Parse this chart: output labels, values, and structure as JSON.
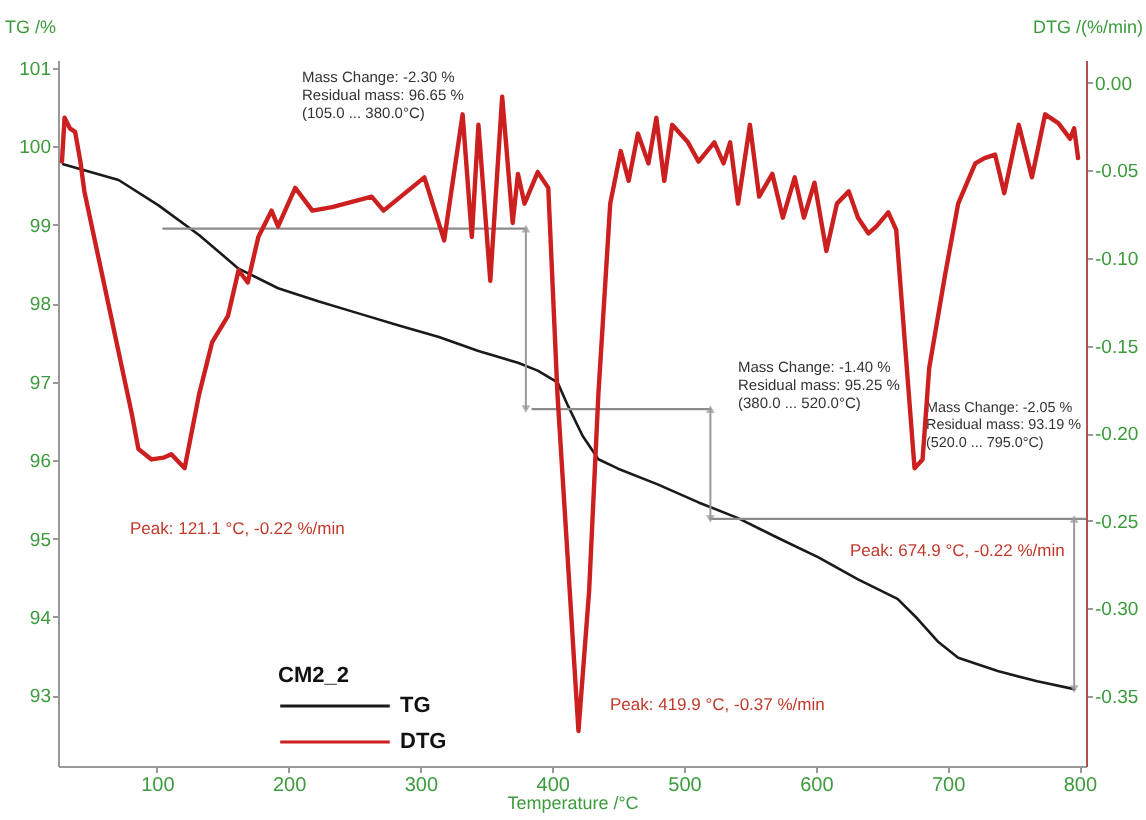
{
  "chart_data": {
    "type": "line",
    "xlabel": "Temperature /°C",
    "ylabel": "TG /%",
    "y2label": "DTG /(%/min)",
    "legend_title": "CM2_2",
    "legend": "bottom left",
    "grid": false,
    "line_style": "solid",
    "xlim": [
      25,
      805
    ],
    "xticks": [
      100,
      200,
      300,
      400,
      500,
      600,
      700,
      800
    ],
    "ylim": [
      92.1,
      101.1
    ],
    "yticks": [
      93,
      94,
      95,
      96,
      97,
      98,
      99,
      100,
      101
    ],
    "y2lim": [
      -0.39,
      0.013
    ],
    "y2ticks": [
      {
        "value": 0,
        "label": "0.00"
      },
      {
        "value": -0.05,
        "label": "-0.05"
      },
      {
        "value": -0.1,
        "label": "-0.10"
      },
      {
        "value": -0.15,
        "label": "-0.15"
      },
      {
        "value": -0.2,
        "label": "-0.20"
      },
      {
        "value": -0.25,
        "label": "-0.25"
      },
      {
        "value": -0.3,
        "label": "-0.30"
      },
      {
        "value": -0.35,
        "label": "-0.35"
      }
    ],
    "series": [
      {
        "name": "TG",
        "color": "#1a1a1a",
        "x": [
          29,
          71,
          101,
          132,
          162,
          192,
          223,
          253,
          283,
          314,
          344,
          374,
          389,
          404,
          412,
          423,
          435,
          450,
          480,
          511,
          541,
          571,
          602,
          632,
          662,
          677,
          693,
          708,
          738,
          768,
          796
        ],
        "values": [
          99.77,
          99.57,
          99.25,
          98.87,
          98.44,
          98.19,
          98.02,
          97.87,
          97.72,
          97.57,
          97.39,
          97.24,
          97.14,
          96.99,
          96.69,
          96.31,
          96.01,
          95.89,
          95.69,
          95.46,
          95.26,
          95.01,
          94.76,
          94.48,
          94.23,
          93.98,
          93.68,
          93.48,
          93.31,
          93.18,
          93.08
        ]
      },
      {
        "name": "DTG",
        "color": "#cc1f1f",
        "axis": "y2",
        "x": [
          28,
          30,
          34,
          38,
          42,
          45,
          81,
          86,
          96,
          105,
          111,
          121.1,
          132,
          142,
          154,
          162,
          169,
          177,
          187,
          192,
          205,
          218,
          233,
          263,
          272,
          303,
          318,
          332,
          339,
          344,
          353,
          362,
          370,
          374,
          379,
          389,
          397,
          404,
          419.9,
          428,
          435,
          444,
          452,
          458,
          465,
          473,
          479,
          485,
          491,
          503,
          511,
          523,
          530,
          535,
          541,
          550,
          557,
          567,
          575,
          584,
          591,
          599,
          608,
          616,
          625,
          632,
          640,
          646,
          655,
          661,
          674.9,
          681,
          686,
          698,
          708,
          721,
          728,
          736,
          743,
          754,
          764,
          774,
          784,
          793,
          796,
          799
        ],
        "values": [
          -0.045,
          -0.02,
          -0.026,
          -0.028,
          -0.045,
          -0.062,
          -0.189,
          -0.209,
          -0.215,
          -0.214,
          -0.212,
          -0.22,
          -0.178,
          -0.148,
          -0.133,
          -0.107,
          -0.114,
          -0.088,
          -0.073,
          -0.082,
          -0.06,
          -0.073,
          -0.071,
          -0.065,
          -0.073,
          -0.054,
          -0.09,
          -0.018,
          -0.088,
          -0.024,
          -0.113,
          -0.008,
          -0.08,
          -0.052,
          -0.069,
          -0.051,
          -0.06,
          -0.178,
          -0.37,
          -0.29,
          -0.178,
          -0.069,
          -0.039,
          -0.056,
          -0.029,
          -0.046,
          -0.02,
          -0.056,
          -0.024,
          -0.034,
          -0.045,
          -0.034,
          -0.046,
          -0.034,
          -0.069,
          -0.024,
          -0.065,
          -0.052,
          -0.077,
          -0.054,
          -0.077,
          -0.057,
          -0.096,
          -0.069,
          -0.062,
          -0.077,
          -0.086,
          -0.082,
          -0.074,
          -0.084,
          -0.22,
          -0.215,
          -0.163,
          -0.11,
          -0.069,
          -0.046,
          -0.043,
          -0.041,
          -0.063,
          -0.024,
          -0.054,
          -0.018,
          -0.023,
          -0.032,
          -0.026,
          -0.043
        ]
      },
      {
        "type": "line",
        "color": "#8c8c8c",
        "x": [
          105,
          380
        ],
        "values": [
          98.95,
          98.95
        ]
      },
      {
        "type": "line",
        "color": "#8c8c8c",
        "x": [
          385,
          520
        ],
        "values": [
          96.65,
          96.65
        ]
      },
      {
        "type": "line",
        "color": "#8c8c8c",
        "x": [
          520,
          805
        ],
        "values": [
          95.25,
          95.25
        ]
      }
    ],
    "annotations": [
      "Mass Change:   -2.30 %\nResidual mass:  96.65 %\n(105.0 ... 380.0°C)",
      "Mass Change:   -1.40 %\nResidual mass:  95.25 %\n(380.0 ... 520.0°C)",
      "Mass Change:   -2.05 %\nResidual mass:  93.19 %\n(520.0 ... 795.0°C)",
      "Peak: 121.1 °C, -0.22 %/min",
      "Peak: 419.9 °C, -0.37 %/min",
      "Peak: 674.9 °C, -0.22 %/min"
    ]
  }
}
